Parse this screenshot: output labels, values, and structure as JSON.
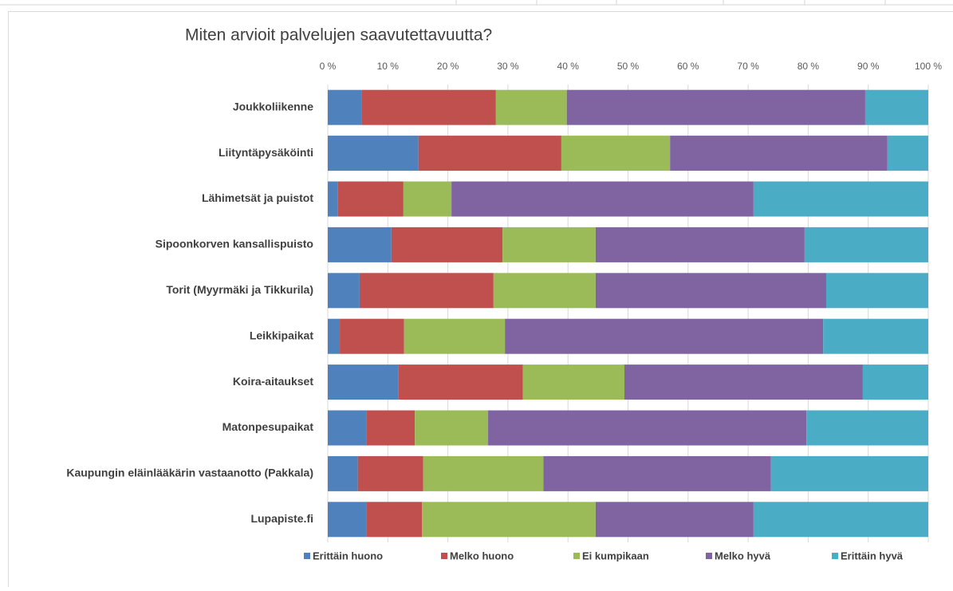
{
  "chart_data": {
    "type": "stacked_bar_horizontal",
    "title": "Miten arvioit palvelujen saavutettavuutta?",
    "categories": [
      "Joukkoliikenne",
      "Liityntäpysäköinti",
      "Lähimetsät ja puistot",
      "Sipoonkorven kansallispuisto",
      "Torit (Myyrmäki ja Tikkurila)",
      "Leikkipaikat",
      "Koira-aitaukset",
      "Matonpesupaikat",
      "Kaupungin eläinlääkärin vastaanotto (Pakkala)",
      "Lupapiste.fi"
    ],
    "series": [
      {
        "name": "Erittäin huono",
        "color": "#4f81bd",
        "values": [
          5.7,
          15.1,
          1.7,
          10.6,
          5.3,
          2.0,
          11.8,
          6.4,
          5.0,
          6.4
        ]
      },
      {
        "name": "Melko huono",
        "color": "#c0504d",
        "values": [
          22.3,
          23.8,
          10.9,
          18.5,
          22.3,
          10.7,
          20.7,
          8.1,
          10.9,
          9.3
        ]
      },
      {
        "name": "Ei kumpikaan",
        "color": "#9bbb59",
        "values": [
          11.8,
          18.1,
          8.0,
          15.5,
          17.0,
          16.8,
          16.9,
          12.2,
          20.0,
          28.9
        ]
      },
      {
        "name": "Melko hyvä",
        "color": "#8064a2",
        "values": [
          49.7,
          36.2,
          50.3,
          34.8,
          38.4,
          53.0,
          39.7,
          53.0,
          37.9,
          26.3
        ]
      },
      {
        "name": "Erittäin hyvä",
        "color": "#4bacc6",
        "values": [
          10.5,
          6.8,
          29.1,
          20.6,
          17.0,
          17.5,
          10.9,
          20.3,
          26.2,
          29.1
        ]
      }
    ],
    "xlim": [
      0,
      100
    ],
    "xticks": [
      {
        "value": 0,
        "label": "0 %"
      },
      {
        "value": 10,
        "label": "10 %"
      },
      {
        "value": 20,
        "label": "20 %"
      },
      {
        "value": 30,
        "label": "30 %"
      },
      {
        "value": 40,
        "label": "40 %"
      },
      {
        "value": 50,
        "label": "50 %"
      },
      {
        "value": 60,
        "label": "60 %"
      },
      {
        "value": 70,
        "label": "70 %"
      },
      {
        "value": 80,
        "label": "80 %"
      },
      {
        "value": 90,
        "label": "90 %"
      },
      {
        "value": 100,
        "label": "100 %"
      }
    ],
    "grid": true,
    "legend": "bottom"
  }
}
